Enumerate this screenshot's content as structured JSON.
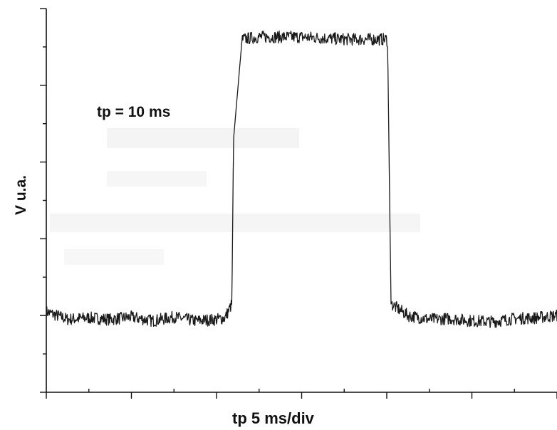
{
  "chart_data": {
    "type": "line",
    "title": "",
    "annotation": "tp = 10 ms",
    "xlabel": "tp 5 ms/div",
    "ylabel": "V u.a.",
    "x_unit": "div",
    "xlim": [
      0,
      6
    ],
    "ylim": [
      0,
      5
    ],
    "grid": false,
    "legend": "none",
    "colors": {
      "trace": "#1a1a1a",
      "axis": "#111111",
      "background": "#ffffff"
    },
    "series": [
      {
        "x": [
          0,
          0.25,
          0.5,
          0.75,
          1.0,
          1.25,
          1.5,
          1.75,
          2.0,
          2.1,
          2.18,
          2.2,
          2.3,
          2.5,
          3.0,
          3.5,
          3.9,
          4.0,
          4.01,
          4.05,
          4.25,
          4.5,
          4.75,
          5.0,
          5.25,
          5.5,
          5.75,
          6.0
        ],
        "y": [
          1.05,
          0.95,
          0.97,
          0.95,
          0.98,
          0.93,
          0.98,
          0.93,
          0.95,
          0.97,
          1.15,
          3.3,
          4.6,
          4.63,
          4.63,
          4.6,
          4.6,
          4.6,
          4.55,
          1.15,
          1.0,
          0.95,
          0.96,
          0.93,
          0.92,
          0.96,
          0.97,
          1.0
        ]
      }
    ]
  }
}
